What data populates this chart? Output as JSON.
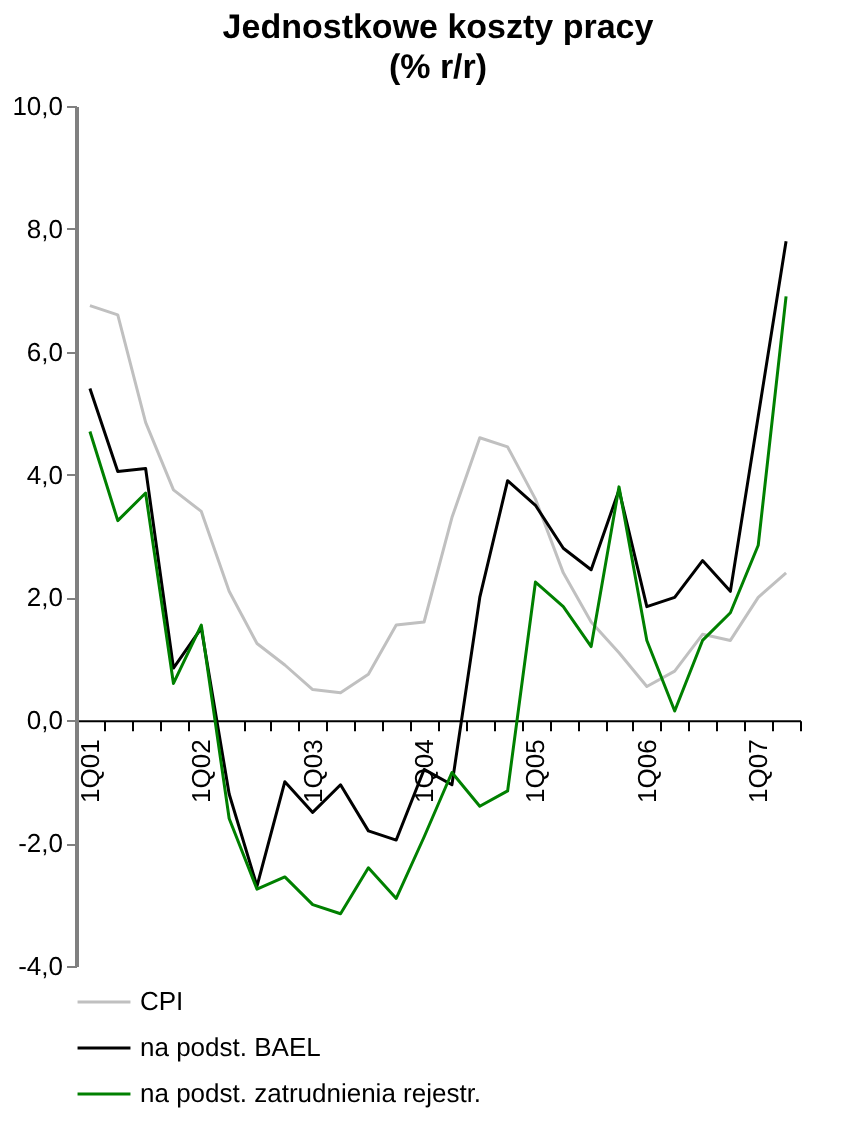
{
  "chart_data": {
    "type": "line",
    "title": "Jednostkowe koszty pracy",
    "subtitle": "(% r/r)",
    "categories": [
      "1Q01",
      null,
      null,
      null,
      "1Q02",
      null,
      null,
      null,
      "1Q03",
      null,
      null,
      null,
      "1Q04",
      null,
      null,
      null,
      "1Q05",
      null,
      null,
      null,
      "1Q06",
      null,
      null,
      null,
      "1Q07",
      null
    ],
    "series": [
      {
        "name": "CPI",
        "color": "#c0c0c0",
        "values": [
          6.75,
          6.6,
          4.85,
          3.75,
          3.4,
          2.1,
          1.25,
          0.9,
          0.5,
          0.45,
          0.75,
          1.55,
          1.6,
          3.3,
          4.6,
          4.45,
          3.6,
          2.4,
          1.6,
          1.1,
          0.55,
          0.8,
          1.4,
          1.3,
          2.0,
          2.4
        ]
      },
      {
        "name": "na podst. BAEL",
        "color": "#000000",
        "values": [
          5.4,
          4.05,
          4.1,
          0.85,
          1.5,
          -1.2,
          -2.7,
          -1.0,
          -1.5,
          -1.05,
          -1.8,
          -1.95,
          -0.8,
          -1.05,
          2.0,
          3.9,
          3.5,
          2.8,
          2.45,
          3.75,
          1.85,
          2.0,
          2.6,
          2.1,
          4.95,
          7.8
        ]
      },
      {
        "name": "na podst. zatrudnienia rejestr.",
        "color": "#008000",
        "values": [
          4.7,
          3.25,
          3.7,
          0.6,
          1.55,
          -1.6,
          -2.75,
          -2.55,
          -3.0,
          -3.15,
          -2.4,
          -2.9,
          -1.9,
          -0.85,
          -1.4,
          -1.15,
          2.25,
          1.85,
          1.2,
          3.8,
          1.3,
          0.15,
          1.3,
          1.75,
          2.85,
          6.9
        ]
      }
    ],
    "ylim": [
      -4,
      10
    ],
    "yticks": [
      {
        "value": -4,
        "label": "-4,0"
      },
      {
        "value": -2,
        "label": "-2,0"
      },
      {
        "value": 0,
        "label": "0,0"
      },
      {
        "value": 2,
        "label": "2,0"
      },
      {
        "value": 4,
        "label": "4,0"
      },
      {
        "value": 6,
        "label": "6,0"
      },
      {
        "value": 8,
        "label": "8,0"
      },
      {
        "value": 10,
        "label": "10,0"
      }
    ],
    "grid": false,
    "legend": "bottom",
    "marker": "none",
    "line_style": "solid"
  }
}
